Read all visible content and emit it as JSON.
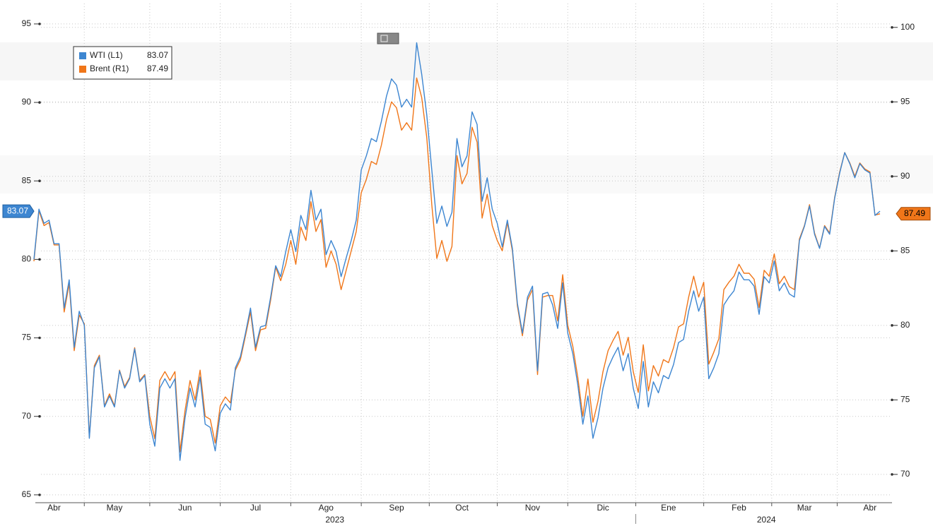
{
  "chart_data": {
    "type": "line",
    "categories": [
      null,
      null,
      null,
      null,
      "Abr",
      null,
      null,
      null,
      null,
      null,
      null,
      null,
      null,
      null,
      null,
      null,
      "May",
      null,
      null,
      null,
      null,
      null,
      null,
      null,
      null,
      null,
      null,
      null,
      null,
      null,
      "Jun",
      null,
      null,
      null,
      null,
      null,
      null,
      null,
      null,
      null,
      null,
      null,
      null,
      null,
      "Jul",
      null,
      null,
      null,
      null,
      null,
      null,
      null,
      null,
      null,
      null,
      null,
      null,
      null,
      "Ago",
      null,
      null,
      null,
      null,
      null,
      null,
      null,
      null,
      null,
      null,
      null,
      null,
      null,
      "Sep",
      null,
      null,
      null,
      null,
      null,
      null,
      null,
      null,
      null,
      null,
      null,
      null,
      "Oct",
      null,
      null,
      null,
      null,
      null,
      null,
      null,
      null,
      null,
      null,
      null,
      null,
      null,
      "Nov",
      null,
      null,
      null,
      null,
      null,
      null,
      null,
      null,
      null,
      null,
      null,
      null,
      null,
      "Dic",
      null,
      null,
      null,
      null,
      null,
      null,
      null,
      null,
      null,
      null,
      null,
      null,
      "Ene",
      null,
      null,
      null,
      null,
      null,
      null,
      null,
      null,
      null,
      null,
      null,
      null,
      null,
      "Feb",
      null,
      null,
      null,
      null,
      null,
      null,
      null,
      null,
      null,
      null,
      null,
      null,
      "Mar",
      null,
      null,
      null,
      null,
      null,
      null,
      null,
      null,
      null,
      null,
      null,
      null,
      "Abr",
      null,
      null
    ],
    "year_labels": [
      "2023",
      "2024"
    ],
    "series": [
      {
        "name": "WTI (L1)",
        "color": "#3d86d1",
        "values": [
          80.0,
          83.2,
          82.3,
          82.5,
          81.0,
          81.0,
          76.9,
          78.7,
          74.4,
          76.7,
          75.8,
          68.6,
          73.1,
          73.8,
          70.6,
          71.3,
          70.6,
          72.9,
          71.8,
          72.4,
          74.3,
          72.2,
          72.6,
          69.5,
          68.1,
          71.8,
          72.4,
          71.8,
          72.4,
          67.2,
          69.9,
          71.8,
          70.6,
          72.5,
          69.5,
          69.3,
          67.8,
          70.2,
          70.8,
          70.4,
          73.1,
          73.8,
          75.3,
          76.9,
          74.4,
          75.7,
          75.8,
          77.6,
          79.6,
          78.9,
          80.5,
          81.9,
          80.5,
          82.8,
          81.9,
          84.4,
          82.5,
          83.2,
          80.3,
          81.2,
          80.5,
          78.9,
          80.1,
          81.2,
          82.5,
          85.7,
          86.6,
          87.7,
          87.5,
          88.8,
          90.4,
          91.5,
          91.1,
          89.7,
          90.2,
          89.7,
          93.8,
          91.8,
          89.2,
          85.7,
          82.3,
          83.4,
          82.1,
          83.0,
          87.7,
          85.9,
          86.6,
          89.4,
          88.6,
          83.7,
          85.2,
          83.2,
          82.3,
          80.8,
          82.5,
          80.7,
          77.2,
          75.3,
          77.6,
          78.3,
          72.9,
          77.8,
          77.9,
          77.1,
          75.6,
          78.5,
          75.3,
          74.0,
          72.0,
          69.5,
          71.3,
          68.6,
          69.9,
          71.8,
          73.1,
          73.8,
          74.4,
          72.9,
          74.0,
          71.8,
          70.5,
          73.5,
          70.6,
          72.2,
          71.5,
          72.6,
          72.4,
          73.3,
          74.7,
          74.9,
          76.7,
          78.0,
          76.7,
          77.6,
          72.4,
          73.1,
          74.0,
          77.1,
          77.6,
          78.0,
          79.2,
          78.7,
          78.7,
          78.3,
          76.5,
          78.9,
          78.5,
          79.9,
          78.0,
          78.5,
          77.8,
          77.6,
          81.2,
          82.1,
          83.4,
          81.6,
          80.7,
          82.1,
          81.6,
          83.9,
          85.5,
          86.8,
          86.1,
          85.2,
          86.1,
          85.7,
          85.5,
          82.8,
          83.07
        ]
      },
      {
        "name": "Brent (R1)",
        "color": "#f07619",
        "axis": "y2",
        "values": [
          84.3,
          87.7,
          86.7,
          86.9,
          85.4,
          85.4,
          80.9,
          82.8,
          78.3,
          80.7,
          80.1,
          72.5,
          77.3,
          78.0,
          74.6,
          75.4,
          74.6,
          77.0,
          75.9,
          76.5,
          78.5,
          76.3,
          76.7,
          73.9,
          72.4,
          76.3,
          76.9,
          76.3,
          76.9,
          71.5,
          74.3,
          76.3,
          75.0,
          77.0,
          73.9,
          73.7,
          72.1,
          74.6,
          75.2,
          74.8,
          77.0,
          77.7,
          79.3,
          80.9,
          78.3,
          79.7,
          79.8,
          81.7,
          83.9,
          83.0,
          84.1,
          85.7,
          84.1,
          86.6,
          85.7,
          88.3,
          86.3,
          87.1,
          83.9,
          85.0,
          84.1,
          82.4,
          83.7,
          85.0,
          86.3,
          88.9,
          89.8,
          91.0,
          90.8,
          92.1,
          93.8,
          95.0,
          94.6,
          93.1,
          93.6,
          93.1,
          96.6,
          95.3,
          92.6,
          88.1,
          84.5,
          85.7,
          84.3,
          85.3,
          91.4,
          89.5,
          90.2,
          93.3,
          92.3,
          87.2,
          88.8,
          86.7,
          85.7,
          85.0,
          86.9,
          85.0,
          81.3,
          79.3,
          81.7,
          82.4,
          76.7,
          81.9,
          82.0,
          82.0,
          80.3,
          83.4,
          80.0,
          78.6,
          76.5,
          73.9,
          76.4,
          73.5,
          74.9,
          76.9,
          78.3,
          79.0,
          79.6,
          78.0,
          79.2,
          76.9,
          75.5,
          78.7,
          75.6,
          77.3,
          76.6,
          77.7,
          77.5,
          78.5,
          79.9,
          80.1,
          81.9,
          83.3,
          81.9,
          82.9,
          77.4,
          78.2,
          79.1,
          82.4,
          82.9,
          83.3,
          84.1,
          83.5,
          83.5,
          83.1,
          81.2,
          83.7,
          83.3,
          84.8,
          82.8,
          83.3,
          82.6,
          82.4,
          85.8,
          86.7,
          88.1,
          86.2,
          85.2,
          86.7,
          86.2,
          88.6,
          90.3,
          91.6,
          90.9,
          90.0,
          90.9,
          90.5,
          90.3,
          87.4,
          87.49
        ]
      }
    ],
    "ylim": [
      64.5,
      96.3
    ],
    "yticks": [
      65,
      70,
      75,
      80,
      85,
      90,
      95
    ],
    "y2lim": [
      68.1,
      101.6
    ],
    "y2ticks": [
      70,
      75,
      80,
      85,
      90,
      95,
      100
    ],
    "grid": true
  }
}
